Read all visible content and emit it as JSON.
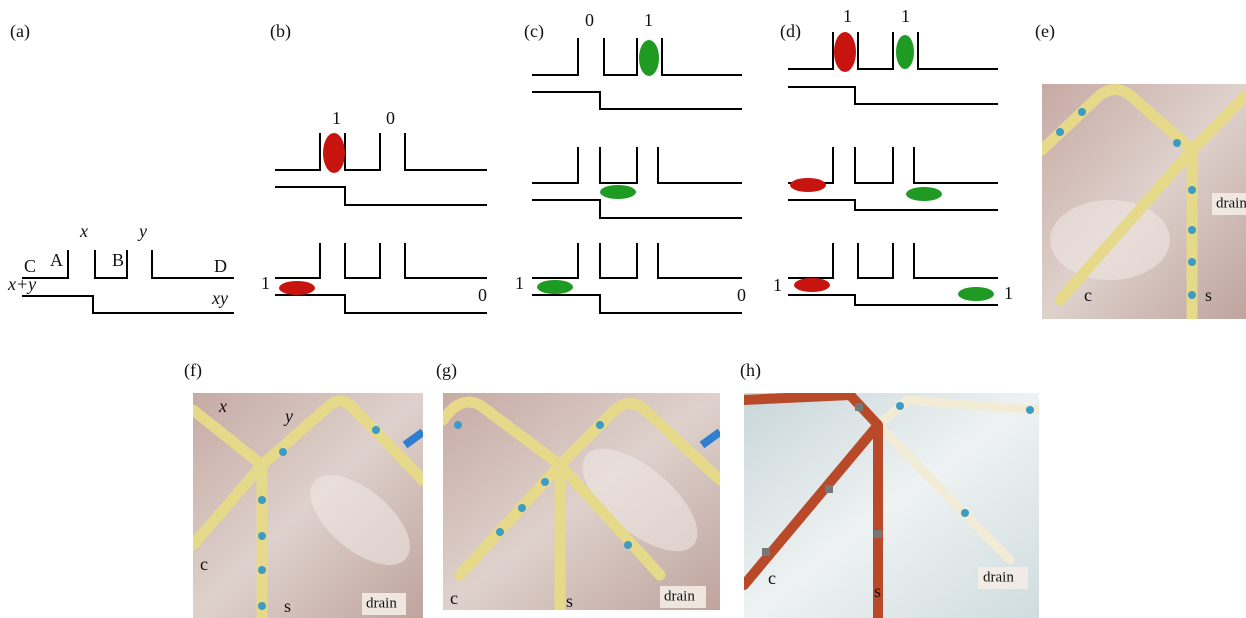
{
  "panels": [
    {
      "label": "(a)",
      "texts": [
        "x",
        "y",
        "A",
        "B",
        "C",
        "D",
        "x+y",
        "xy"
      ]
    },
    {
      "label": "(b)",
      "texts": [
        "1",
        "0",
        "1",
        "0"
      ]
    },
    {
      "label": "(c)",
      "texts": [
        "0",
        "1",
        "1",
        "0"
      ]
    },
    {
      "label": "(d)",
      "texts": [
        "1",
        "1",
        "1",
        "1"
      ]
    },
    {
      "label": "(e)",
      "texts": [
        "drain",
        "c",
        "s"
      ]
    },
    {
      "label": "(f)",
      "texts": [
        "x",
        "y",
        "c",
        "s",
        "drain"
      ]
    },
    {
      "label": "(g)",
      "texts": [
        "c",
        "s",
        "drain"
      ]
    },
    {
      "label": "(h)",
      "texts": [
        "c",
        "s",
        "drain"
      ]
    }
  ]
}
